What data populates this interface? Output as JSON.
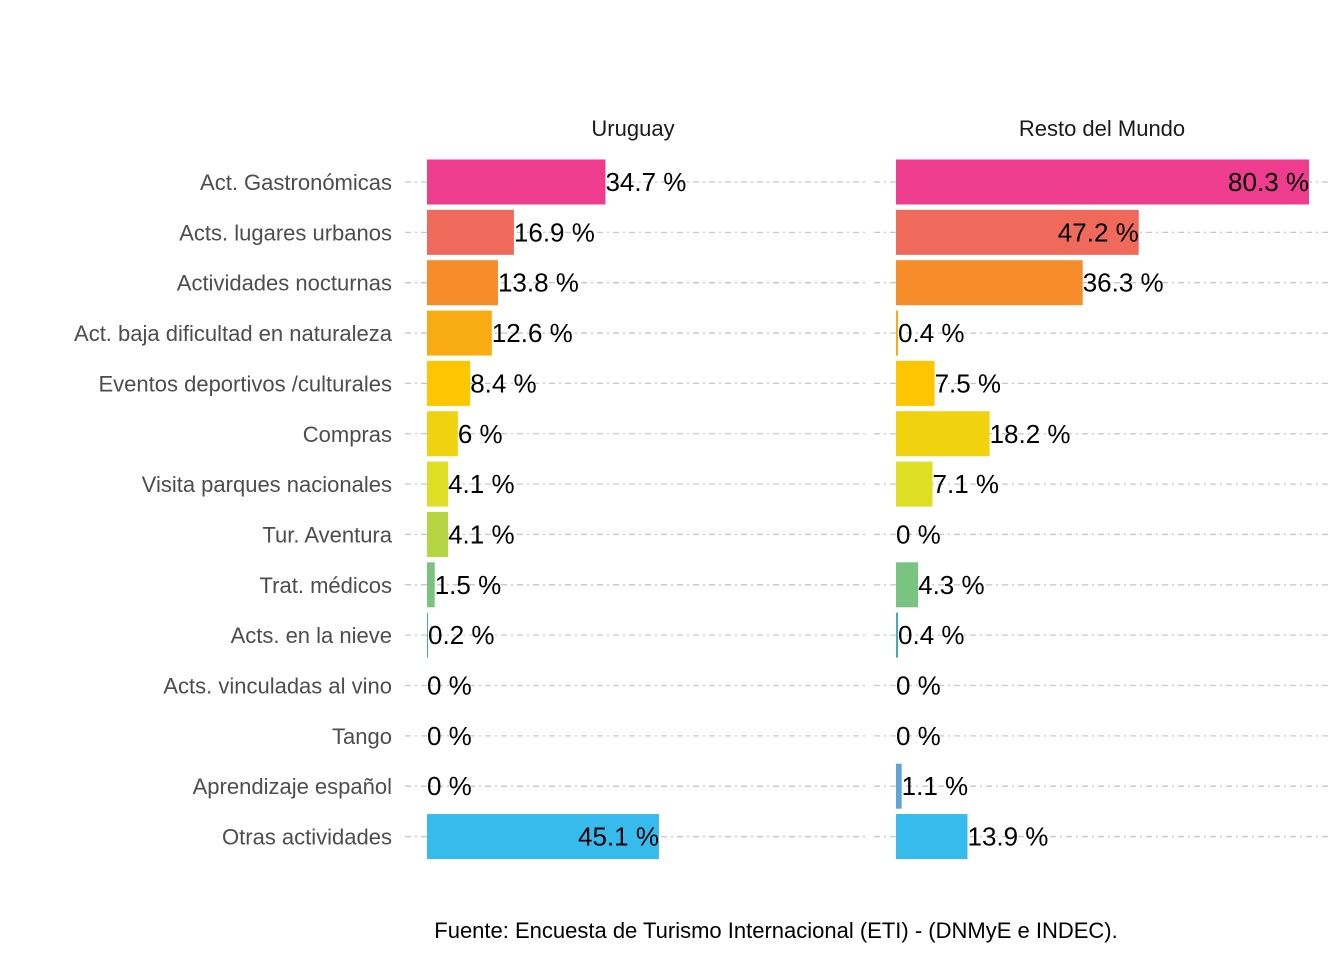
{
  "chart_data": {
    "type": "bar",
    "orientation": "horizontal",
    "categories": [
      "Act. Gastronómicas",
      "Acts. lugares urbanos",
      "Actividades nocturnas",
      "Act. baja dificultad en naturaleza",
      "Eventos deportivos /culturales",
      "Compras",
      "Visita parques nacionales",
      "Tur. Aventura",
      "Trat. médicos",
      "Acts. en la nieve",
      "Acts. vinculadas al vino",
      "Tango",
      "Aprendizaje español",
      "Otras actividades"
    ],
    "colors": [
      "#EE3D8F",
      "#F06A5C",
      "#F68D2A",
      "#F9AB13",
      "#FDC600",
      "#F1D20F",
      "#DEDE24",
      "#B6D542",
      "#79C480",
      "#49A8B8",
      "#4C9ED6",
      "#5B9FD4",
      "#5FA4D6",
      "#37BBED"
    ],
    "series": [
      {
        "name": "Uruguay",
        "values": [
          34.7,
          16.9,
          13.8,
          12.6,
          8.4,
          6,
          4.1,
          4.1,
          1.5,
          0.2,
          0,
          0,
          0,
          45.1
        ],
        "labels": [
          "34.7 %",
          "16.9 %",
          "13.8 %",
          "12.6 %",
          "8.4 %",
          "6 %",
          "4.1 %",
          "4.1 %",
          "1.5 %",
          "0.2 %",
          "0 %",
          "0 %",
          "0 %",
          "45.1 %"
        ]
      },
      {
        "name": "Resto del Mundo",
        "values": [
          80.3,
          47.2,
          36.3,
          0.4,
          7.5,
          18.2,
          7.1,
          0,
          4.3,
          0.4,
          0,
          0,
          1.1,
          13.9
        ],
        "labels": [
          "80.3 %",
          "47.2 %",
          "36.3 %",
          "0.4 %",
          "7.5 %",
          "18.2 %",
          "7.1 %",
          "0 %",
          "4.3 %",
          "0.4 %",
          "0 %",
          "0 %",
          "1.1 %",
          "13.9 %"
        ]
      }
    ],
    "xlim": [
      0,
      80.3
    ],
    "grid": "horizontal dashed gridlines at each category",
    "caption": "Fuente: Encuesta de Turismo Internacional (ETI) - (DNMyE e INDEC)."
  }
}
